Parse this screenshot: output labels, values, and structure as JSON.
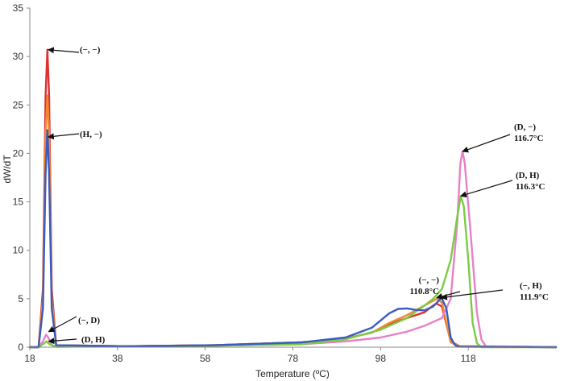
{
  "chart_data": {
    "type": "line",
    "xlabel": "Temperature (ºC)",
    "ylabel": "dW/dT",
    "xlim": [
      18,
      138
    ],
    "ylim": [
      0,
      35
    ],
    "x_ticks": [
      "18",
      "38",
      "58",
      "78",
      "98",
      "118"
    ],
    "y_ticks": [
      "0",
      "5",
      "10",
      "15",
      "20",
      "25",
      "30",
      "35"
    ],
    "grid": false,
    "series": [
      {
        "color": "#e03030",
        "points": [
          [
            18,
            0
          ],
          [
            20,
            0
          ],
          [
            21,
            6
          ],
          [
            21.6,
            26
          ],
          [
            22,
            30.7
          ],
          [
            22.4,
            26
          ],
          [
            23,
            6
          ],
          [
            24,
            0.2
          ],
          [
            40,
            0.1
          ],
          [
            60,
            0.2
          ],
          [
            80,
            0.5
          ],
          [
            90,
            0.9
          ],
          [
            96,
            1.5
          ],
          [
            100,
            2.4
          ],
          [
            104,
            3.0
          ],
          [
            108,
            3.6
          ],
          [
            110,
            4.3
          ],
          [
            110.8,
            4.5
          ],
          [
            112,
            4.2
          ],
          [
            114,
            0.6
          ],
          [
            116,
            0.1
          ],
          [
            138,
            0
          ]
        ]
      },
      {
        "color": "#f08a30",
        "points": [
          [
            18,
            0
          ],
          [
            20,
            0
          ],
          [
            21,
            5
          ],
          [
            21.6,
            22
          ],
          [
            22,
            26
          ],
          [
            22.4,
            22
          ],
          [
            23,
            5
          ],
          [
            24,
            0.2
          ],
          [
            40,
            0.1
          ],
          [
            60,
            0.2
          ],
          [
            80,
            0.5
          ],
          [
            90,
            0.9
          ],
          [
            96,
            1.5
          ],
          [
            100,
            2.5
          ],
          [
            104,
            3.3
          ],
          [
            108,
            4.3
          ],
          [
            110.8,
            5.0
          ],
          [
            112,
            4.6
          ],
          [
            114,
            0.5
          ],
          [
            116,
            0.1
          ],
          [
            138,
            0
          ]
        ]
      },
      {
        "color": "#e880c8",
        "points": [
          [
            18,
            0
          ],
          [
            20,
            0
          ],
          [
            21,
            0.6
          ],
          [
            21.7,
            1.3
          ],
          [
            22.2,
            1.0
          ],
          [
            23,
            0.2
          ],
          [
            24,
            0.05
          ],
          [
            40,
            0.1
          ],
          [
            60,
            0.15
          ],
          [
            80,
            0.3
          ],
          [
            90,
            0.6
          ],
          [
            98,
            1.0
          ],
          [
            104,
            1.6
          ],
          [
            108,
            2.2
          ],
          [
            112,
            3.0
          ],
          [
            114,
            5.0
          ],
          [
            115.5,
            13
          ],
          [
            116.2,
            19
          ],
          [
            116.7,
            20.2
          ],
          [
            117.2,
            19
          ],
          [
            118.5,
            12
          ],
          [
            120,
            3.5
          ],
          [
            121,
            0.8
          ],
          [
            122,
            0.1
          ],
          [
            138,
            0
          ]
        ]
      },
      {
        "color": "#7acc44",
        "points": [
          [
            18,
            0
          ],
          [
            20,
            0
          ],
          [
            21,
            0.3
          ],
          [
            21.8,
            0.6
          ],
          [
            22.5,
            0.3
          ],
          [
            24,
            0.05
          ],
          [
            40,
            0.1
          ],
          [
            60,
            0.15
          ],
          [
            80,
            0.3
          ],
          [
            90,
            0.8
          ],
          [
            98,
            1.8
          ],
          [
            104,
            3.0
          ],
          [
            108,
            4.3
          ],
          [
            110,
            5.0
          ],
          [
            112,
            6.0
          ],
          [
            114,
            9.0
          ],
          [
            115.5,
            13.5
          ],
          [
            116.3,
            15.6
          ],
          [
            117,
            14.5
          ],
          [
            118,
            9
          ],
          [
            119,
            2.5
          ],
          [
            120,
            0.4
          ],
          [
            121,
            0
          ],
          [
            138,
            0
          ]
        ]
      },
      {
        "color": "#3a5cc0",
        "points": [
          [
            18,
            0
          ],
          [
            20,
            0
          ],
          [
            21,
            4
          ],
          [
            21.6,
            18
          ],
          [
            22,
            22.4
          ],
          [
            22.4,
            18
          ],
          [
            23,
            4
          ],
          [
            24,
            0.2
          ],
          [
            40,
            0.1
          ],
          [
            60,
            0.2
          ],
          [
            80,
            0.5
          ],
          [
            90,
            1.0
          ],
          [
            96,
            2.0
          ],
          [
            100,
            3.5
          ],
          [
            102,
            3.95
          ],
          [
            104,
            4.0
          ],
          [
            106,
            3.85
          ],
          [
            108,
            3.8
          ],
          [
            110,
            4.2
          ],
          [
            111.9,
            5.1
          ],
          [
            113,
            4.0
          ],
          [
            114,
            1.0
          ],
          [
            115,
            0.2
          ],
          [
            116,
            0.05
          ],
          [
            138,
            0
          ]
        ]
      }
    ],
    "annotations": [
      {
        "text": "(−, −)",
        "x": 22.2,
        "y": 30.7
      },
      {
        "text": "(H, −)",
        "x": 22.2,
        "y": 21.7
      },
      {
        "text": "(−, D)",
        "x": 22.3,
        "y": 1.6
      },
      {
        "text": "(D, H)",
        "x": 22.3,
        "y": 0.6
      },
      {
        "text": "(D, −)",
        "text2": "116.7°C",
        "x": 116.7,
        "y": 20.2
      },
      {
        "text": "(D, H)",
        "text2": "116.3°C",
        "x": 116.3,
        "y": 15.6
      },
      {
        "text": "(−, −)",
        "text2": "110.8°C",
        "x": 110.8,
        "y": 5.1
      },
      {
        "text": "(−, H)",
        "text2": "111.9°C",
        "x": 111.9,
        "y": 5.1
      }
    ]
  }
}
